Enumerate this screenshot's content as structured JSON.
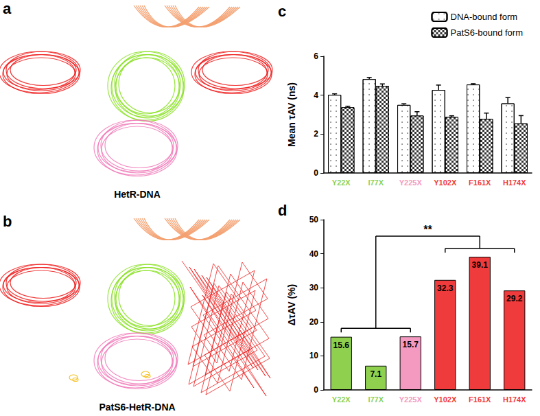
{
  "panels": [
    {
      "label": "a",
      "caption": "HetR-DNA"
    },
    {
      "label": "b",
      "caption": "PatS6-HetR-DNA"
    }
  ],
  "chart_data": [
    {
      "type": "bar",
      "title": "c",
      "categories": [
        "Y22X",
        "I77X",
        "Y225X",
        "Y102X",
        "F161X",
        "H174X"
      ],
      "series": [
        {
          "name": "DNA-bound form",
          "color": "#ffffff",
          "values": [
            4.02,
            4.83,
            3.5,
            4.27,
            4.55,
            3.58
          ],
          "errors": [
            0.05,
            0.08,
            0.06,
            0.25,
            0.04,
            0.3
          ]
        },
        {
          "name": "PatS6-bound form",
          "color": "#333333",
          "values": [
            3.38,
            4.48,
            2.95,
            2.88,
            2.78,
            2.55
          ],
          "errors": [
            0.05,
            0.1,
            0.2,
            0.06,
            0.3,
            0.4
          ]
        }
      ],
      "ylabel": "Mean τAV (ns)",
      "ylim": [
        0,
        6
      ],
      "yticks": [
        0,
        2,
        4,
        6
      ],
      "legend": "upper right",
      "grid": false
    },
    {
      "type": "bar",
      "title": "d",
      "categories": [
        "Y22X",
        "I77X",
        "Y225X",
        "Y102X",
        "F161X",
        "H174X"
      ],
      "values": [
        15.6,
        7.1,
        15.7,
        32.3,
        39.1,
        29.2
      ],
      "colors": [
        "#8fd14f",
        "#8fd14f",
        "#f49ac1",
        "#ef3b3b",
        "#ef3b3b",
        "#ef3b3b"
      ],
      "ylabel": "ΔτAV (%)",
      "ylim": [
        0,
        50
      ],
      "yticks": [
        0,
        10,
        20,
        30,
        40,
        50
      ],
      "data_labels": true,
      "grid": false,
      "annotations": [
        {
          "text": "**",
          "between": [
            [
              "Y22X",
              "I77X",
              "Y225X"
            ],
            [
              "Y102X",
              "F161X",
              "H174X"
            ]
          ]
        }
      ]
    }
  ]
}
